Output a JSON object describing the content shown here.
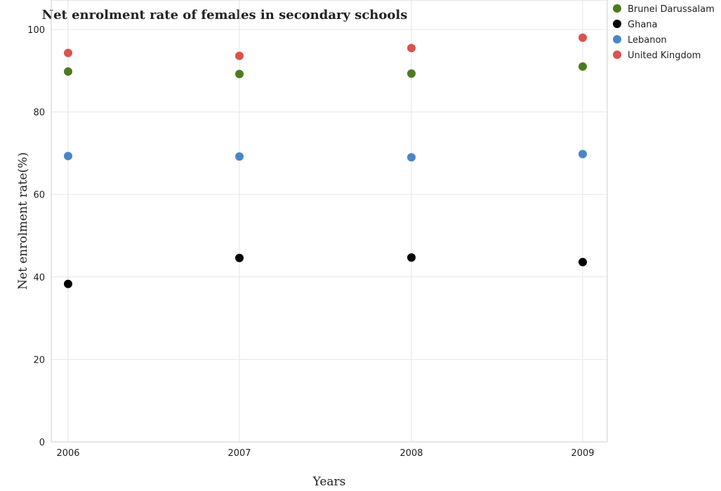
{
  "chart_data": {
    "type": "scatter",
    "title": "Net enrolment rate of females in secondary schools",
    "xlabel": "Years",
    "ylabel": "Net enrolment rate(%)",
    "categories": [
      "2006",
      "2007",
      "2008",
      "2009"
    ],
    "ylim": [
      0,
      100
    ],
    "yticks": [
      "0",
      "20",
      "40",
      "60",
      "80",
      "100"
    ],
    "grid": true,
    "legend_position": "top-right",
    "series": [
      {
        "name": "Brunei Darussalam",
        "color": "#4d7a20",
        "values": [
          89.8,
          89.2,
          89.3,
          91.0
        ]
      },
      {
        "name": "Ghana",
        "color": "#000000",
        "values": [
          38.3,
          44.6,
          44.7,
          43.6
        ]
      },
      {
        "name": "Lebanon",
        "color": "#4a86c5",
        "values": [
          69.3,
          69.2,
          69.0,
          69.8
        ]
      },
      {
        "name": "United Kingdom",
        "color": "#d9534f",
        "values": [
          94.3,
          93.6,
          95.5,
          98.0
        ]
      }
    ]
  }
}
